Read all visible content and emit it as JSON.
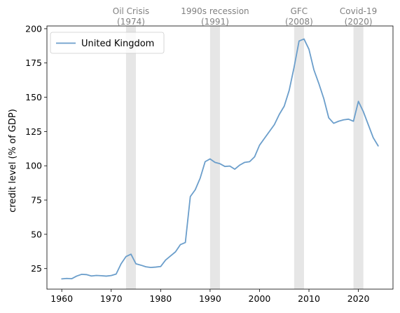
{
  "chart_data": {
    "type": "line",
    "title": "",
    "xlabel": "",
    "ylabel": "credit level (% of GDP)",
    "xlim": [
      1957,
      2027
    ],
    "ylim": [
      10,
      202
    ],
    "xticks": [
      1960,
      1970,
      1980,
      1990,
      2000,
      2010,
      2020
    ],
    "yticks": [
      25,
      50,
      75,
      100,
      125,
      150,
      175,
      200
    ],
    "grid": false,
    "legend": "top-left",
    "series": [
      {
        "name": "United Kingdom",
        "color": "#6b9ecb",
        "x": [
          1960,
          1961,
          1962,
          1963,
          1964,
          1965,
          1966,
          1967,
          1968,
          1969,
          1970,
          1971,
          1972,
          1973,
          1974,
          1975,
          1976,
          1977,
          1978,
          1979,
          1980,
          1981,
          1982,
          1983,
          1984,
          1985,
          1986,
          1987,
          1988,
          1989,
          1990,
          1991,
          1992,
          1993,
          1994,
          1995,
          1996,
          1997,
          1998,
          1999,
          2000,
          2001,
          2002,
          2003,
          2004,
          2005,
          2006,
          2007,
          2008,
          2009,
          2010,
          2011,
          2012,
          2013,
          2014,
          2015,
          2016,
          2017,
          2018,
          2019,
          2020,
          2021,
          2022,
          2023,
          2024
        ],
        "values": [
          17.5,
          17.8,
          17.6,
          19.5,
          20.8,
          20.6,
          19.6,
          20.0,
          19.8,
          19.5,
          19.9,
          21.0,
          28.5,
          33.8,
          35.5,
          28.5,
          27.5,
          26.3,
          25.8,
          26.1,
          26.5,
          31.2,
          34.2,
          37.2,
          42.5,
          44.0,
          77.5,
          82.5,
          91.0,
          103.0,
          105.0,
          102.5,
          101.5,
          99.5,
          99.8,
          97.5,
          100.5,
          102.5,
          103.0,
          106.5,
          115.0,
          120.0,
          125.0,
          130.0,
          137.5,
          143.5,
          155.0,
          172.0,
          191.0,
          192.5,
          185.0,
          170.0,
          160.0,
          149.0,
          135.0,
          131.0,
          132.5,
          133.5,
          134.0,
          132.5,
          147.0,
          139.5,
          130.0,
          120.5,
          114.5
        ]
      }
    ],
    "annotations": [
      {
        "label": "Oil Crisis",
        "year": "(1974)",
        "start": 1973,
        "end": 1975
      },
      {
        "label": "1990s recession",
        "year": "(1991)",
        "start": 1990,
        "end": 1992
      },
      {
        "label": "GFC",
        "year": "(2008)",
        "start": 2007,
        "end": 2009
      },
      {
        "label": "Covid-19",
        "year": "(2020)",
        "start": 2019,
        "end": 2021
      }
    ]
  }
}
